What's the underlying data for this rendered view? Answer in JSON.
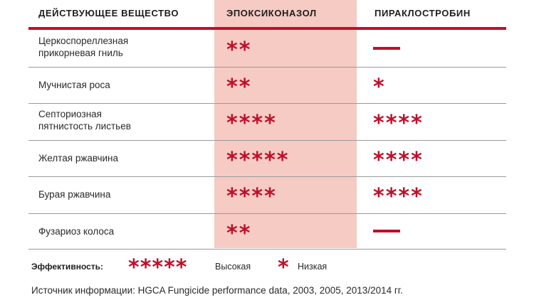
{
  "colors": {
    "accent": "#c00f2a",
    "highlight": "#f5cbc3"
  },
  "header": {
    "col_substance": "ДЕЙСТВУЮЩЕЕ ВЕЩЕСТВО",
    "col_epoxiconazole": "ЭПОКСИКОНАЗОЛ",
    "col_pyraclostrobin": "ПИРАКЛОСТРОБИН"
  },
  "rows": [
    {
      "disease": "Церкоспореллезная\nприкорневая гниль",
      "epoxiconazole": "**",
      "pyraclostrobin": "—",
      "epoxiconazole_stars": 2,
      "pyraclostrobin_stars": 0
    },
    {
      "disease": "Мучнистая роса",
      "epoxiconazole": "**",
      "pyraclostrobin": "*",
      "epoxiconazole_stars": 2,
      "pyraclostrobin_stars": 1
    },
    {
      "disease": "Септориозная\nпятнистость листьев",
      "epoxiconazole": "****",
      "pyraclostrobin": "****",
      "epoxiconazole_stars": 4,
      "pyraclostrobin_stars": 4
    },
    {
      "disease": "Желтая ржавчина",
      "epoxiconazole": "*****",
      "pyraclostrobin": "****",
      "epoxiconazole_stars": 5,
      "pyraclostrobin_stars": 4
    },
    {
      "disease": "Бурая ржавчина",
      "epoxiconazole": "****",
      "pyraclostrobin": "****",
      "epoxiconazole_stars": 4,
      "pyraclostrobin_stars": 4
    },
    {
      "disease": "Фузариоз колоса",
      "epoxiconazole": "**",
      "pyraclostrobin": "—",
      "epoxiconazole_stars": 2,
      "pyraclostrobin_stars": 0
    }
  ],
  "legend": {
    "label": "Эффективность:",
    "high_stars": "*****",
    "high_text": "Высокая",
    "low_stars": "*",
    "low_text": "Низкая"
  },
  "source": "Источник информации: HGCA Fungicide performance data, 2003, 2005, 2013/2014 гг."
}
